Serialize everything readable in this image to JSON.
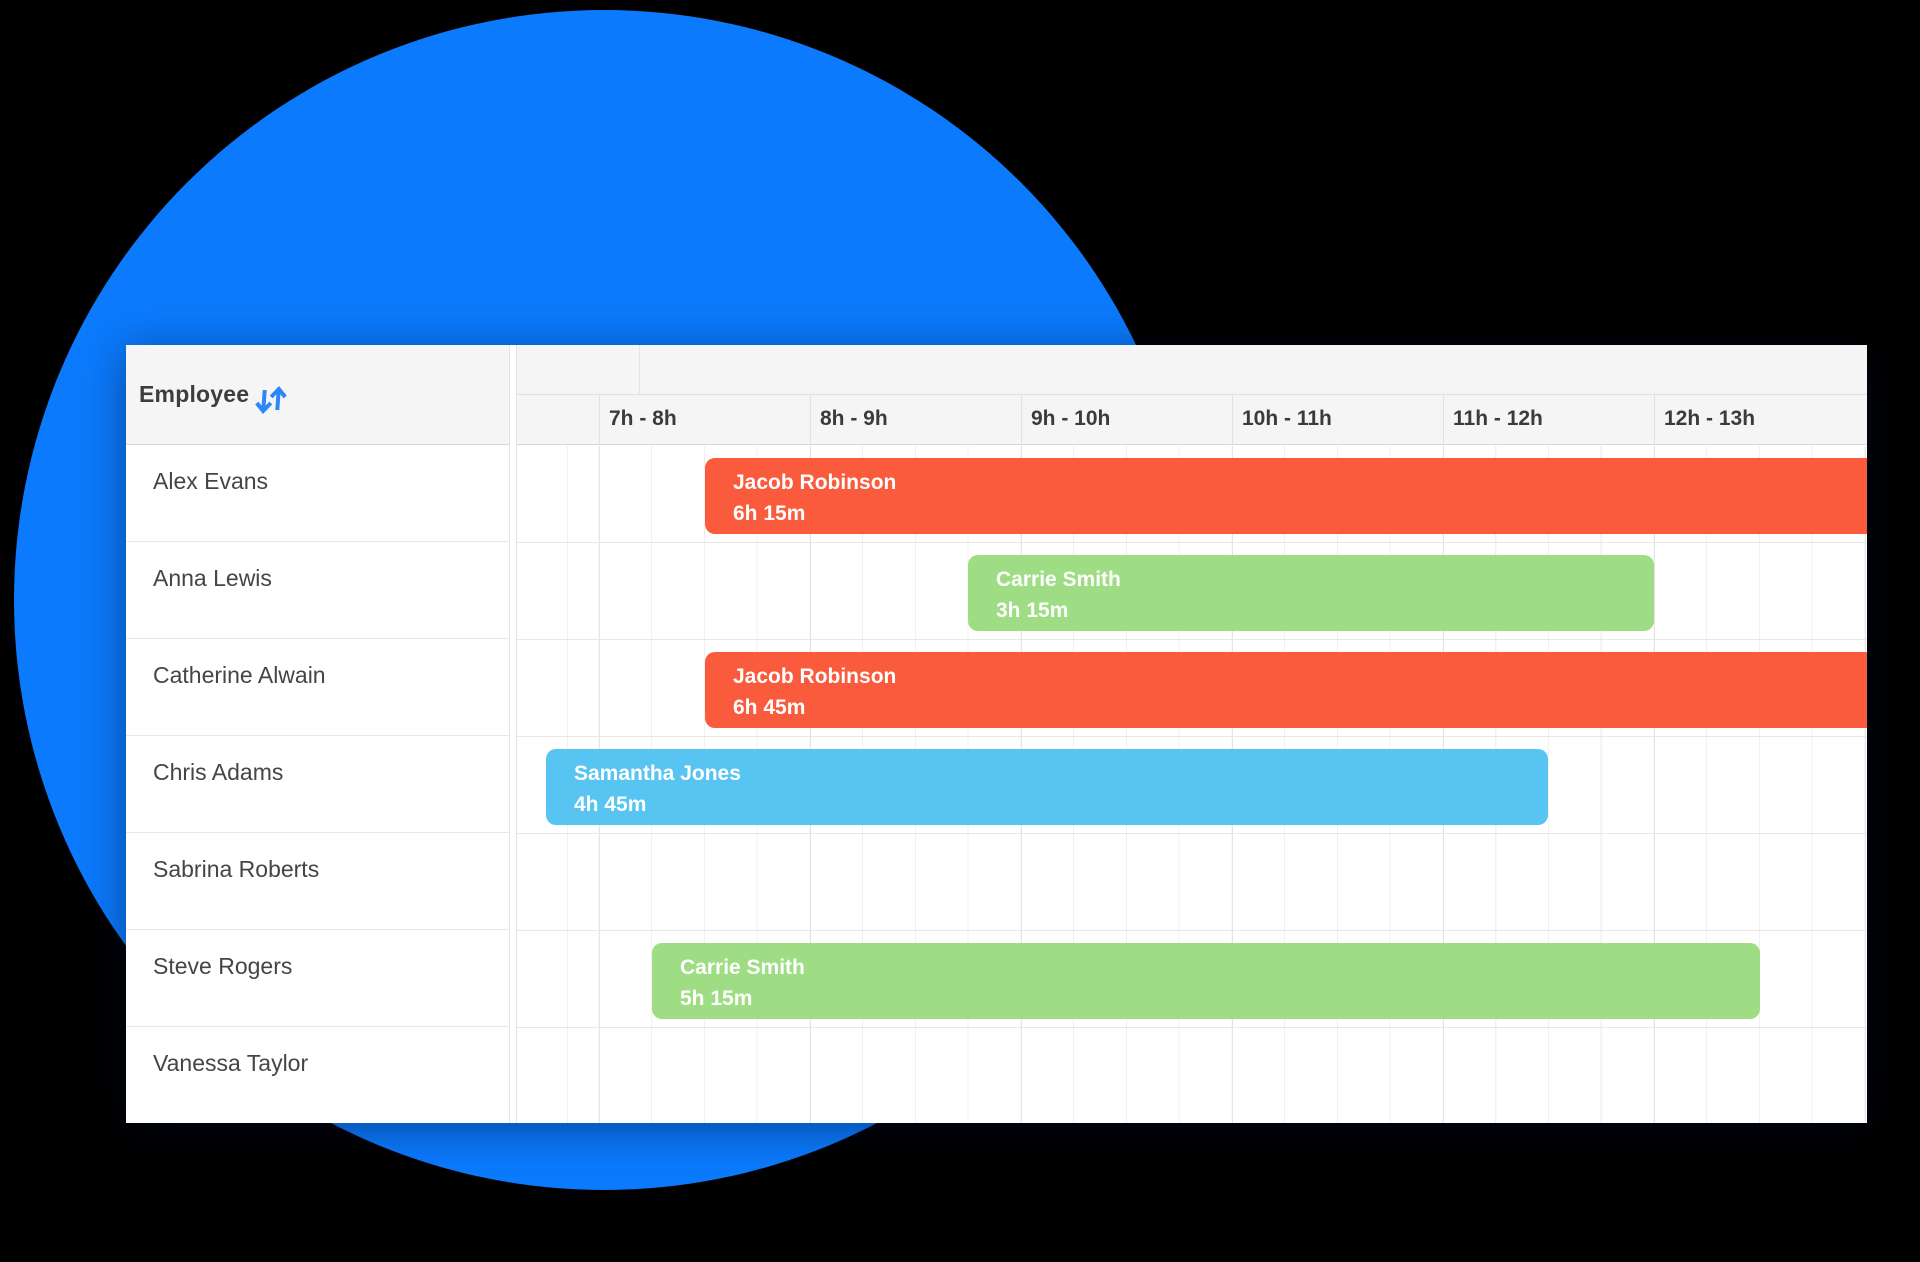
{
  "decor": {
    "circle_color": "#0b7afc"
  },
  "scheduler": {
    "employee_column": {
      "header_label": "Employee",
      "employees": [
        "Alex Evans",
        "Anna Lewis",
        "Catherine Alwain",
        "Chris Adams",
        "Sabrina Roberts",
        "Steve Rogers",
        "Vanessa Taylor"
      ]
    },
    "time_header": {
      "hour_cells": [
        "7h - 8h",
        "8h - 9h",
        "9h - 10h",
        "10h - 11h",
        "11h - 12h",
        "12h - 13h"
      ]
    },
    "events": [
      {
        "row_index": 0,
        "title": "Jacob Robinson",
        "duration_label": "6h 15m",
        "color": "#f95b3c",
        "start_hour": 7.5,
        "duration_hours": 6.25,
        "clipped_right": true
      },
      {
        "row_index": 1,
        "title": "Carrie Smith",
        "duration_label": "3h 15m",
        "color": "#9edd84",
        "start_hour": 8.75,
        "duration_hours": 3.25,
        "clipped_right": false
      },
      {
        "row_index": 2,
        "title": "Jacob Robinson",
        "duration_label": "6h 45m",
        "color": "#f95b3c",
        "start_hour": 7.5,
        "duration_hours": 6.75,
        "clipped_right": true
      },
      {
        "row_index": 3,
        "title": "Samantha Jones",
        "duration_label": "4h 45m",
        "color": "#58c4f2",
        "start_hour": 6.75,
        "duration_hours": 4.75,
        "clipped_right": false
      },
      {
        "row_index": 5,
        "title": "Carrie Smith",
        "duration_label": "5h 15m",
        "color": "#9edd84",
        "start_hour": 7.25,
        "duration_hours": 5.25,
        "clipped_right": false
      }
    ],
    "colors": {
      "sort_icon": "#2e87f6"
    }
  }
}
